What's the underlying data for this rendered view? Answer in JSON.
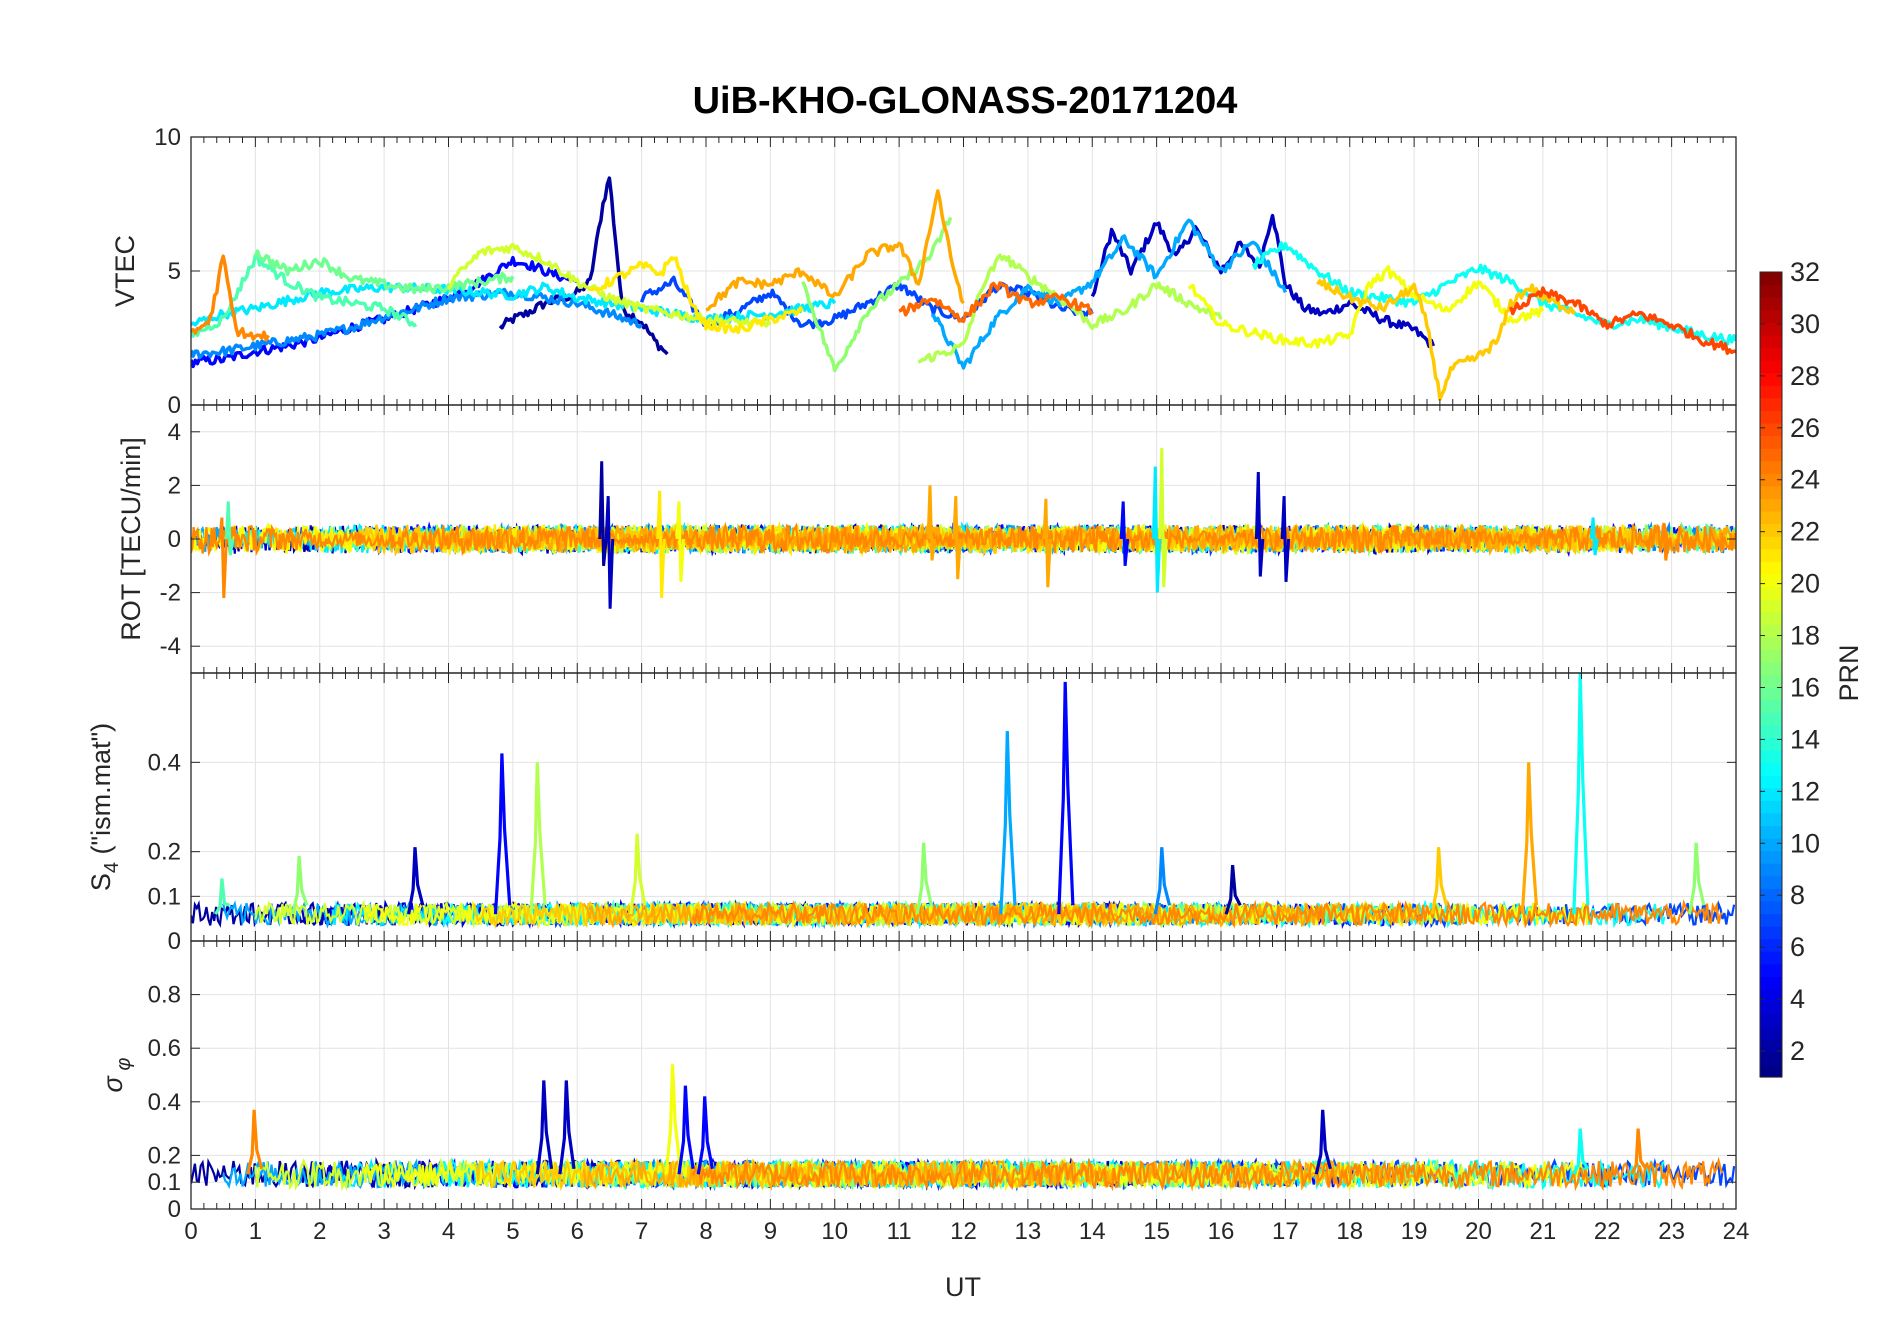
{
  "chart_data": {
    "type": "line",
    "title": "UiB-KHO-GLONASS-20171204",
    "xlabel": "UT",
    "xlim": [
      0,
      24
    ],
    "x_ticks": [
      "0",
      "1",
      "2",
      "3",
      "4",
      "5",
      "6",
      "7",
      "8",
      "9",
      "10",
      "11",
      "12",
      "13",
      "14",
      "15",
      "16",
      "17",
      "18",
      "19",
      "20",
      "21",
      "22",
      "23",
      "24"
    ],
    "grid": true,
    "colormap": "jet",
    "colorbar": {
      "label": "PRN",
      "range": [
        1,
        32
      ],
      "ticks": [
        "2",
        "4",
        "6",
        "8",
        "10",
        "12",
        "14",
        "16",
        "18",
        "20",
        "22",
        "24",
        "26",
        "28",
        "30",
        "32"
      ],
      "position": "right"
    },
    "panels": [
      {
        "id": "vtec",
        "ylabel": "VTEC",
        "ylim": [
          0,
          10
        ],
        "y_ticks": [
          "0",
          "5",
          "10"
        ],
        "series": [
          {
            "prn": 2,
            "x": [
              4.8,
              5.0,
              5.2,
              5.5,
              5.8,
              6.0,
              6.2,
              6.4,
              6.5,
              6.7,
              7.0,
              7.2,
              7.4
            ],
            "y": [
              2.9,
              3.2,
              3.4,
              3.8,
              4.0,
              4.2,
              4.6,
              7.5,
              8.5,
              3.6,
              3.1,
              2.4,
              1.9
            ]
          },
          {
            "prn": 3,
            "x": [
              14.0,
              14.3,
              14.6,
              15.0,
              15.3,
              15.6,
              16.0,
              16.3,
              16.6,
              16.8,
              17.0,
              17.3,
              17.6,
              18.0,
              18.5,
              19.0,
              19.3
            ],
            "y": [
              4.0,
              6.5,
              5.0,
              6.8,
              5.5,
              6.6,
              5.0,
              6.0,
              5.2,
              7.2,
              4.5,
              3.6,
              3.4,
              3.8,
              3.2,
              2.8,
              2.2
            ]
          },
          {
            "prn": 5,
            "x": [
              0,
              0.5,
              1.0,
              1.5,
              2.0,
              2.5,
              3.0,
              3.5,
              4.0,
              4.5,
              5.0,
              5.3,
              5.6,
              6.0
            ],
            "y": [
              1.6,
              1.7,
              2.0,
              2.2,
              2.5,
              2.9,
              3.2,
              3.6,
              4.0,
              4.6,
              5.4,
              5.2,
              4.9,
              4.6
            ]
          },
          {
            "prn": 7,
            "x": [
              7.0,
              7.5,
              8.0,
              8.5,
              9.0,
              9.5,
              10.0,
              10.5,
              11.0,
              11.5,
              12.0,
              12.5,
              13.0,
              13.5,
              14.0
            ],
            "y": [
              4.0,
              4.6,
              3.0,
              3.5,
              4.2,
              3.0,
              3.2,
              3.8,
              4.5,
              3.6,
              3.2,
              4.4,
              4.2,
              3.6,
              3.4
            ]
          },
          {
            "prn": 9,
            "x": [
              0,
              0.5,
              1.0,
              1.5,
              2.0,
              2.5,
              3.0,
              3.5,
              4.0,
              4.5,
              5.0,
              5.5,
              6.0,
              6.5,
              7.0
            ],
            "y": [
              1.9,
              2.0,
              2.2,
              2.4,
              2.6,
              2.9,
              3.3,
              3.6,
              4.0,
              4.1,
              4.2,
              4.0,
              3.8,
              3.4,
              3.0
            ]
          },
          {
            "prn": 10,
            "x": [
              11.5,
              12.0,
              12.5,
              13.0,
              13.5,
              14.0,
              14.5,
              15.0,
              15.5,
              16.0,
              16.5,
              17.0
            ],
            "y": [
              3.5,
              1.4,
              3.2,
              4.4,
              3.8,
              4.6,
              6.2,
              4.8,
              6.9,
              5.0,
              6.1,
              4.2
            ]
          },
          {
            "prn": 12,
            "x": [
              0,
              0.5,
              1.0,
              1.5,
              2.0,
              3.0,
              4.0,
              5.0,
              5.5,
              6.0,
              7.0,
              8.0,
              9.0,
              10.0
            ],
            "y": [
              3.0,
              3.4,
              3.6,
              3.9,
              4.2,
              4.4,
              4.3,
              4.1,
              4.4,
              4.0,
              3.6,
              3.2,
              3.4,
              3.8
            ]
          },
          {
            "prn": 13,
            "x": [
              16.5,
              17.0,
              17.5,
              18.0,
              18.5,
              19.0,
              19.5,
              20.0,
              20.5,
              21.0,
              21.5,
              22.0,
              22.5,
              23.0,
              23.5,
              24.0
            ],
            "y": [
              5.2,
              6.0,
              5.0,
              4.2,
              4.0,
              3.8,
              4.5,
              5.1,
              4.6,
              3.8,
              3.4,
              3.0,
              3.2,
              2.9,
              2.6,
              2.4
            ]
          },
          {
            "prn": 15,
            "x": [
              0,
              0.5,
              1.0,
              1.5,
              2.0,
              2.5,
              3.0,
              3.5
            ],
            "y": [
              2.6,
              3.2,
              5.5,
              4.6,
              4.0,
              3.8,
              3.6,
              3.0
            ]
          },
          {
            "prn": 16,
            "x": [
              1.0,
              1.5,
              2.0,
              2.5,
              3.0,
              3.5,
              4.0,
              4.5,
              5.0
            ],
            "y": [
              5.7,
              5.0,
              5.4,
              4.7,
              4.5,
              4.3,
              4.4,
              4.6,
              4.8
            ]
          },
          {
            "prn": 17,
            "x": [
              9.5,
              10.0,
              10.1,
              10.5,
              11.0,
              11.5,
              11.8
            ],
            "y": [
              4.6,
              1.3,
              1.7,
              3.5,
              4.5,
              5.6,
              7.0
            ]
          },
          {
            "prn": 18,
            "x": [
              11.3,
              11.5,
              12.0,
              12.3,
              12.6,
              13.0,
              13.5,
              14.0,
              14.5,
              15.0,
              15.5,
              16.0
            ],
            "y": [
              1.6,
              1.8,
              2.2,
              4.5,
              5.6,
              4.8,
              4.0,
              3.0,
              3.5,
              4.5,
              3.8,
              3.2
            ]
          },
          {
            "prn": 19,
            "x": [
              4.0,
              4.5,
              5.0,
              5.5,
              6.0,
              6.5,
              7.0,
              7.5,
              8.0,
              8.5,
              9.0
            ],
            "y": [
              4.5,
              5.7,
              5.9,
              5.4,
              4.6,
              4.0,
              3.6,
              3.4,
              3.2,
              3.1,
              3.0
            ]
          },
          {
            "prn": 20,
            "x": [
              15.5,
              16.0,
              16.5,
              17.0,
              17.5,
              18.0,
              18.3,
              18.6,
              19.0,
              19.5,
              20.0,
              20.5,
              21.0
            ],
            "y": [
              4.5,
              3.0,
              2.7,
              2.4,
              2.3,
              2.6,
              4.5,
              5.0,
              4.1,
              3.5,
              4.6,
              3.2,
              3.5
            ]
          },
          {
            "prn": 21,
            "x": [
              6.2,
              6.5,
              7.0,
              7.3,
              7.5,
              7.8,
              8.0,
              8.5,
              9.0,
              9.5
            ],
            "y": [
              4.2,
              4.6,
              5.2,
              4.9,
              5.6,
              3.6,
              3.0,
              2.8,
              3.2,
              3.5
            ]
          },
          {
            "prn": 22,
            "x": [
              17.5,
              18.0,
              18.5,
              19.0,
              19.2,
              19.4,
              19.6,
              20.0,
              20.3,
              20.5,
              20.8,
              21.0,
              21.5
            ],
            "y": [
              4.6,
              4.0,
              3.6,
              4.4,
              3.0,
              0.3,
              1.4,
              1.8,
              2.4,
              3.8,
              4.4,
              4.0,
              3.5
            ]
          },
          {
            "prn": 23,
            "x": [
              8.0,
              8.5,
              9.0,
              9.5,
              10.0,
              10.5,
              11.0,
              11.3,
              11.6,
              11.8,
              12.0
            ],
            "y": [
              3.6,
              4.6,
              4.5,
              5.0,
              4.0,
              5.6,
              6.0,
              4.5,
              8.0,
              5.5,
              3.8
            ]
          },
          {
            "prn": 24,
            "x": [
              0,
              0.3,
              0.5,
              0.7,
              1.0,
              1.2
            ],
            "y": [
              2.6,
              3.2,
              5.5,
              2.8,
              2.5,
              2.6
            ]
          },
          {
            "prn": 25,
            "x": [
              11.0,
              11.5,
              12.0,
              12.5,
              13.0,
              13.5,
              14.0
            ],
            "y": [
              3.4,
              4.0,
              3.2,
              4.5,
              3.8,
              4.0,
              3.5
            ]
          },
          {
            "prn": 26,
            "x": [
              20.5,
              21.0,
              21.5,
              22.0,
              22.5,
              23.0,
              23.5,
              24.0
            ],
            "y": [
              3.5,
              4.2,
              3.8,
              3.0,
              3.4,
              3.0,
              2.4,
              2.0
            ]
          }
        ]
      },
      {
        "id": "rot",
        "ylabel": "ROT [TECU/min]",
        "ylim": [
          -5,
          5
        ],
        "y_ticks": [
          "-4",
          "-2",
          "0",
          "2",
          "4"
        ],
        "note_on_spikes": "noise band around 0 with spikes",
        "spikes": [
          {
            "prn": 24,
            "x": 0.5,
            "ymax": 0.8,
            "ymin": -2.2
          },
          {
            "prn": 15,
            "x": 0.6,
            "ymax": 1.4,
            "ymin": -0.6
          },
          {
            "prn": 2,
            "x": 6.4,
            "ymax": 2.9,
            "ymin": -1.0
          },
          {
            "prn": 3,
            "x": 6.5,
            "ymax": 1.6,
            "ymin": -2.6
          },
          {
            "prn": 21,
            "x": 7.3,
            "ymax": 1.8,
            "ymin": -2.2
          },
          {
            "prn": 20,
            "x": 7.6,
            "ymax": 1.4,
            "ymin": -1.6
          },
          {
            "prn": 23,
            "x": 11.5,
            "ymax": 2.0,
            "ymin": -0.8
          },
          {
            "prn": 23,
            "x": 11.9,
            "ymax": 1.6,
            "ymin": -1.5
          },
          {
            "prn": 23,
            "x": 13.3,
            "ymax": 1.5,
            "ymin": -1.8
          },
          {
            "prn": 5,
            "x": 14.5,
            "ymax": 1.4,
            "ymin": -1.0
          },
          {
            "prn": 19,
            "x": 15.1,
            "ymax": 3.4,
            "ymin": -1.8
          },
          {
            "prn": 12,
            "x": 15.0,
            "ymax": 2.7,
            "ymin": -2.0
          },
          {
            "prn": 3,
            "x": 16.6,
            "ymax": 2.5,
            "ymin": -1.4
          },
          {
            "prn": 3,
            "x": 17.0,
            "ymax": 1.6,
            "ymin": -1.6
          },
          {
            "prn": 12,
            "x": 21.8,
            "ymax": 0.8,
            "ymin": -0.6
          },
          {
            "prn": 24,
            "x": 22.9,
            "ymax": 0.6,
            "ymin": -0.8
          }
        ]
      },
      {
        "id": "s4",
        "ylabel": "S4 (\"ism.mat\")",
        "ylim": [
          0,
          0.6
        ],
        "y_ticks": [
          "0",
          "0.1",
          "0.2",
          "0.4"
        ],
        "baseline": 0.06,
        "spikes": [
          {
            "prn": 3,
            "x": 3.5,
            "y": 0.21
          },
          {
            "prn": 5,
            "x": 4.85,
            "y": 0.42
          },
          {
            "prn": 18,
            "x": 5.4,
            "y": 0.4
          },
          {
            "prn": 19,
            "x": 6.95,
            "y": 0.24
          },
          {
            "prn": 17,
            "x": 1.7,
            "y": 0.19
          },
          {
            "prn": 15,
            "x": 0.5,
            "y": 0.14
          },
          {
            "prn": 10,
            "x": 12.7,
            "y": 0.47
          },
          {
            "prn": 5,
            "x": 13.6,
            "y": 0.58
          },
          {
            "prn": 17,
            "x": 11.4,
            "y": 0.22
          },
          {
            "prn": 9,
            "x": 15.1,
            "y": 0.21
          },
          {
            "prn": 2,
            "x": 16.2,
            "y": 0.17
          },
          {
            "prn": 22,
            "x": 19.4,
            "y": 0.21
          },
          {
            "prn": 23,
            "x": 20.8,
            "y": 0.4
          },
          {
            "prn": 13,
            "x": 21.6,
            "y": 0.6
          },
          {
            "prn": 17,
            "x": 23.4,
            "y": 0.22
          }
        ]
      },
      {
        "id": "sigma_phi",
        "ylabel": "σ φ",
        "ylim": [
          0,
          1
        ],
        "y_ticks": [
          "0",
          "0.1",
          "0.2",
          "0.4",
          "0.6",
          "0.8"
        ],
        "baseline": 0.13,
        "spikes": [
          {
            "prn": 24,
            "x": 1.0,
            "y": 0.37
          },
          {
            "prn": 3,
            "x": 5.5,
            "y": 0.48
          },
          {
            "prn": 3,
            "x": 5.85,
            "y": 0.48
          },
          {
            "prn": 20,
            "x": 7.5,
            "y": 0.54
          },
          {
            "prn": 5,
            "x": 7.7,
            "y": 0.46
          },
          {
            "prn": 5,
            "x": 8.0,
            "y": 0.42
          },
          {
            "prn": 3,
            "x": 17.6,
            "y": 0.37
          },
          {
            "prn": 13,
            "x": 21.6,
            "y": 0.3
          },
          {
            "prn": 24,
            "x": 22.5,
            "y": 0.3
          }
        ]
      }
    ]
  }
}
